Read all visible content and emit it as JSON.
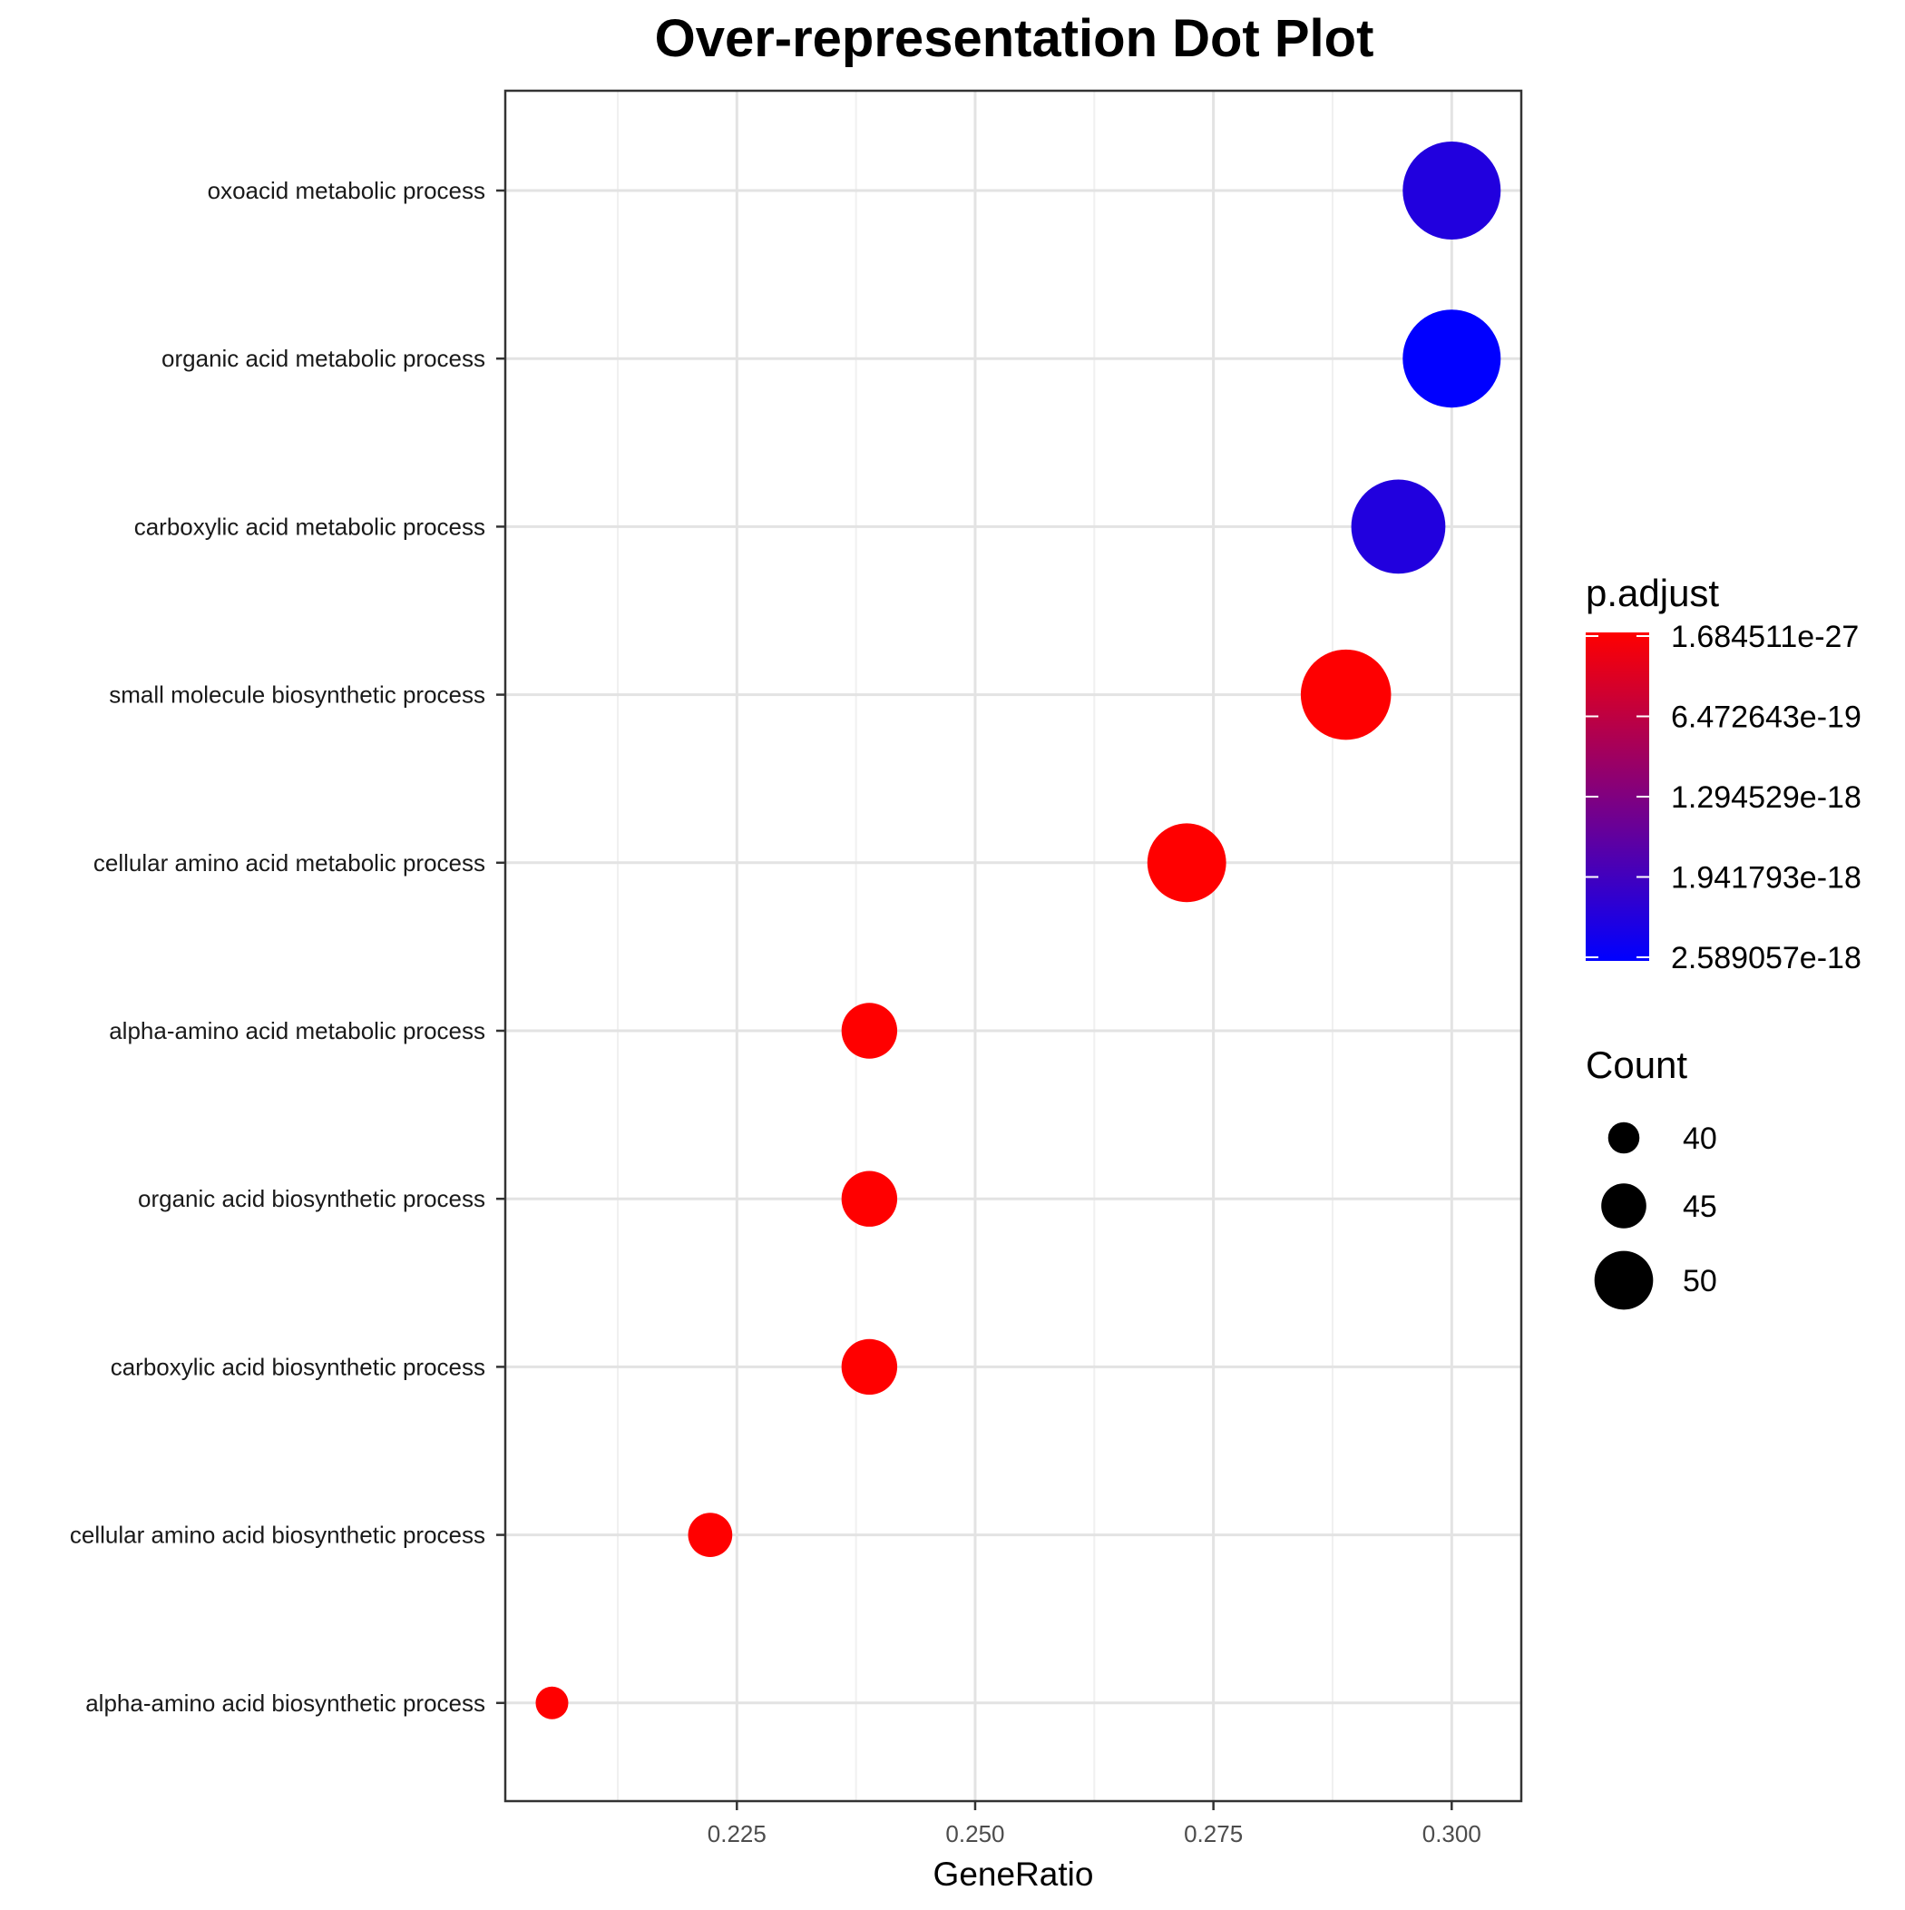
{
  "chart_data": {
    "type": "scatter",
    "title": "Over-representation Dot Plot",
    "xlabel": "GeneRatio",
    "ylabel": "",
    "xlim": [
      0.2007,
      0.3073
    ],
    "x_ticks": [
      0.225,
      0.25,
      0.275,
      0.3
    ],
    "x_tick_labels": [
      "0.225",
      "0.250",
      "0.275",
      "0.300"
    ],
    "grid": true,
    "legend_position": "right",
    "categories": [
      "oxoacid metabolic process",
      "organic acid metabolic process",
      "carboxylic acid metabolic process",
      "small molecule biosynthetic process",
      "cellular amino acid metabolic process",
      "alpha-amino acid metabolic process",
      "organic acid biosynthetic process",
      "carboxylic acid biosynthetic process",
      "cellular amino acid biosynthetic process",
      "alpha-amino acid biosynthetic process"
    ],
    "points": [
      {
        "term": "oxoacid metabolic process",
        "gene_ratio": 0.3,
        "count": 54,
        "p_adjust": 2.25e-18
      },
      {
        "term": "organic acid metabolic process",
        "gene_ratio": 0.3,
        "count": 54,
        "p_adjust": 2.589057e-18
      },
      {
        "term": "carboxylic acid metabolic process",
        "gene_ratio": 0.2944,
        "count": 53,
        "p_adjust": 2.25e-18
      },
      {
        "term": "small molecule biosynthetic process",
        "gene_ratio": 0.2889,
        "count": 52,
        "p_adjust": 1e-20
      },
      {
        "term": "cellular amino acid metabolic process",
        "gene_ratio": 0.2722,
        "count": 49,
        "p_adjust": 1.684511e-27
      },
      {
        "term": "alpha-amino acid metabolic process",
        "gene_ratio": 0.2389,
        "count": 43,
        "p_adjust": 1.684511e-27
      },
      {
        "term": "organic acid biosynthetic process",
        "gene_ratio": 0.2389,
        "count": 43,
        "p_adjust": 1.684511e-27
      },
      {
        "term": "carboxylic acid biosynthetic process",
        "gene_ratio": 0.2389,
        "count": 43,
        "p_adjust": 1.684511e-27
      },
      {
        "term": "cellular amino acid biosynthetic process",
        "gene_ratio": 0.2222,
        "count": 40,
        "p_adjust": 1.684511e-27
      },
      {
        "term": "alpha-amino acid biosynthetic process",
        "gene_ratio": 0.2056,
        "count": 37,
        "p_adjust": 1e-25
      }
    ],
    "color_legend": {
      "title": "p.adjust",
      "low_color": "#ff0000",
      "high_color": "#0000ff",
      "labels": [
        "1.684511e-27",
        "6.472643e-19",
        "1.294529e-18",
        "1.941793e-18",
        "2.589057e-18"
      ],
      "values": [
        1.684511e-27,
        6.472643e-19,
        1.294529e-18,
        1.941793e-18,
        2.589057e-18
      ]
    },
    "size_legend": {
      "title": "Count",
      "values": [
        40,
        45,
        50
      ],
      "labels": [
        "40",
        "45",
        "50"
      ]
    }
  }
}
